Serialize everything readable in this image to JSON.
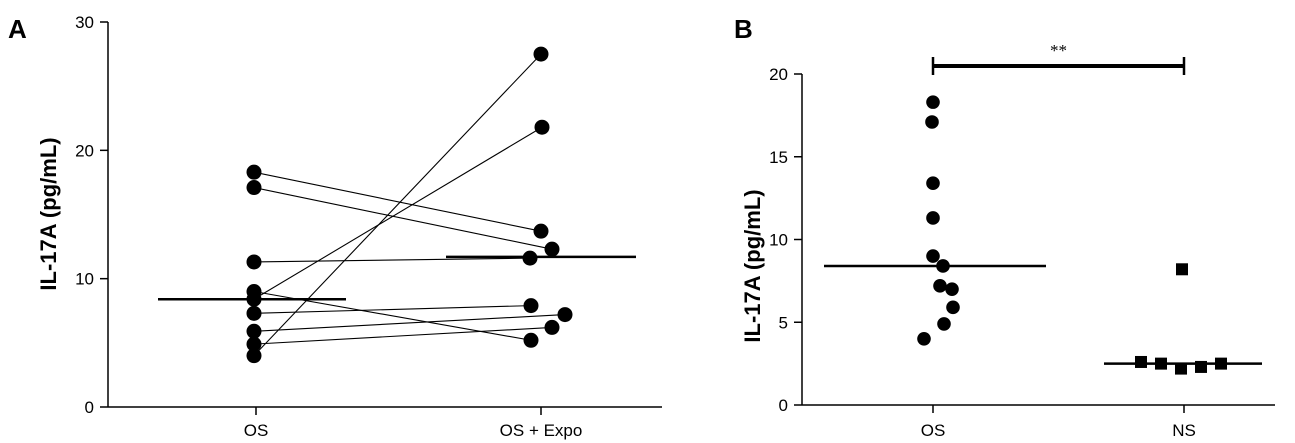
{
  "panels": {
    "a": {
      "label": "A"
    },
    "b": {
      "label": "B"
    }
  },
  "chart_data": [
    {
      "type": "scatter",
      "subtype": "paired",
      "panel": "A",
      "ylabel": "IL-17A (pg/mL)",
      "xlabel": "",
      "categories": [
        "OS",
        "OS + Expo"
      ],
      "ylim": [
        0,
        30
      ],
      "yticks": [
        0,
        10,
        20,
        30
      ],
      "pairs": [
        [
          18.3,
          13.7
        ],
        [
          17.1,
          12.3
        ],
        [
          11.3,
          11.6
        ],
        [
          9.0,
          5.2
        ],
        [
          8.4,
          21.8
        ],
        [
          7.3,
          7.9
        ],
        [
          5.9,
          7.2
        ],
        [
          4.9,
          6.2
        ],
        [
          4.0,
          27.5
        ]
      ],
      "medians": [
        8.4,
        11.7
      ]
    },
    {
      "type": "scatter",
      "panel": "B",
      "ylabel": "IL-17A (pg/mL)",
      "xlabel": "",
      "categories": [
        "OS",
        "NS"
      ],
      "ylim": [
        0,
        20
      ],
      "yticks": [
        0,
        5,
        10,
        15,
        20
      ],
      "series": [
        {
          "category": "OS",
          "marker": "circle",
          "values": [
            18.3,
            17.1,
            13.4,
            11.3,
            9.0,
            8.4,
            7.2,
            7.0,
            5.9,
            4.9,
            4.0
          ],
          "median": 8.4
        },
        {
          "category": "NS",
          "marker": "square",
          "values": [
            8.2,
            2.6,
            2.5,
            2.2,
            2.3,
            2.5
          ],
          "median": 2.5
        }
      ],
      "significance": {
        "text": "**",
        "between": [
          "OS",
          "NS"
        ]
      }
    }
  ]
}
